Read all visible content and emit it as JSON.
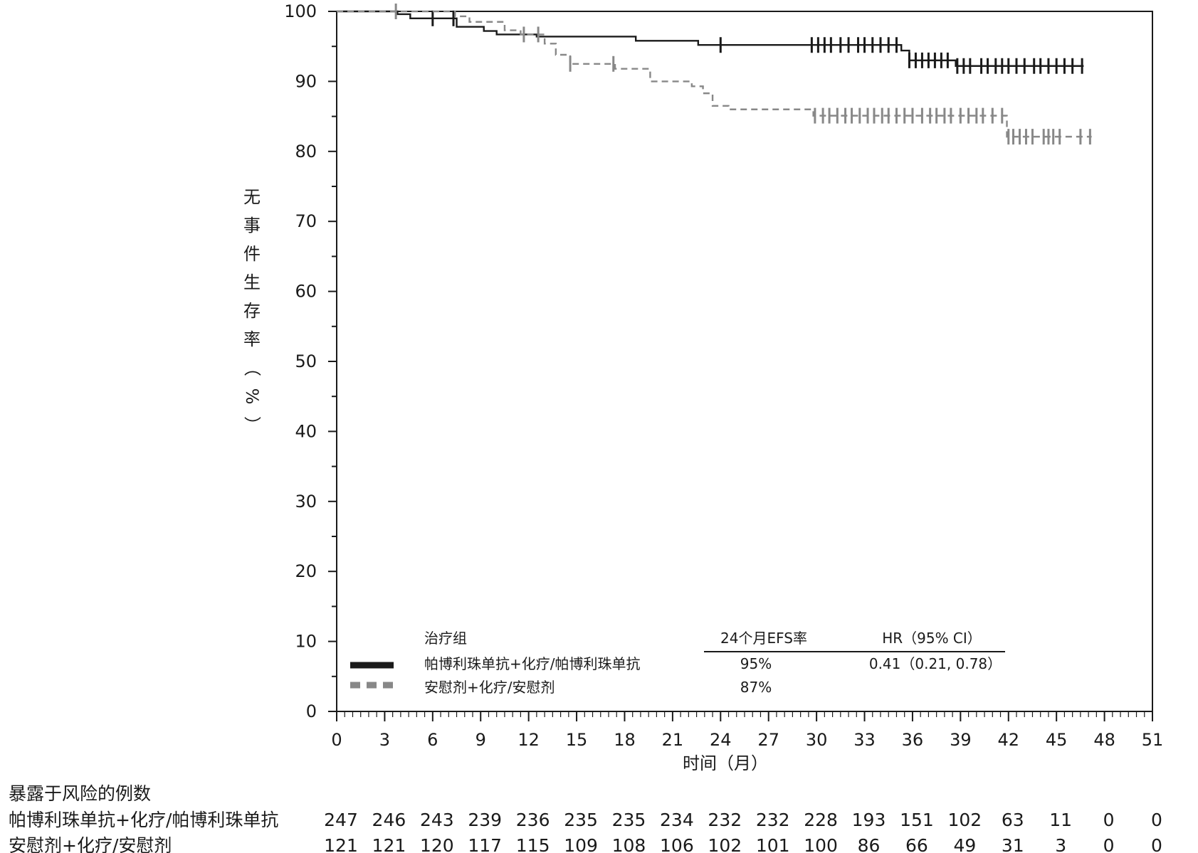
{
  "chart_data": {
    "type": "line",
    "subtype": "kaplan-meier",
    "title": "",
    "xlabel": "时间（月）",
    "ylabel": "无事件生存率（%）",
    "xlim": [
      0,
      51
    ],
    "ylim": [
      0,
      100
    ],
    "x_ticks": [
      0,
      3,
      6,
      9,
      12,
      15,
      18,
      21,
      24,
      27,
      30,
      33,
      36,
      39,
      42,
      45,
      48,
      51
    ],
    "y_ticks": [
      0,
      10,
      20,
      30,
      40,
      50,
      60,
      70,
      80,
      90,
      100
    ],
    "grid": false,
    "series": [
      {
        "name": "帕博利珠单抗+化疗/帕博利珠单抗",
        "color": "#1a1a1a",
        "style": "solid",
        "steps": [
          [
            0,
            100
          ],
          [
            3.8,
            99.6
          ],
          [
            4.6,
            99.0
          ],
          [
            7.5,
            97.8
          ],
          [
            9.2,
            97.2
          ],
          [
            10.0,
            96.7
          ],
          [
            12.5,
            96.4
          ],
          [
            18.7,
            95.8
          ],
          [
            22.6,
            95.2
          ],
          [
            35.3,
            94.4
          ],
          [
            35.8,
            93.0
          ],
          [
            38.7,
            92.2
          ],
          [
            46.7,
            92.2
          ]
        ],
        "censored": [
          6.0,
          7.3,
          24.0,
          29.7,
          30.1,
          30.5,
          30.9,
          31.5,
          32.0,
          32.6,
          33.0,
          33.5,
          34.0,
          34.5,
          35.0,
          35.8,
          36.2,
          36.6,
          37.0,
          37.4,
          37.8,
          38.2,
          38.8,
          39.2,
          39.6,
          40.3,
          40.7,
          41.2,
          41.6,
          42.0,
          42.5,
          43.0,
          43.6,
          44.0,
          44.5,
          45.0,
          45.5,
          46.0,
          46.6
        ]
      },
      {
        "name": "安慰剂+化疗/安慰剂",
        "color": "#888888",
        "style": "dashed",
        "steps": [
          [
            0,
            100
          ],
          [
            7.4,
            99.3
          ],
          [
            8.3,
            98.5
          ],
          [
            10.5,
            97.3
          ],
          [
            11.5,
            96.7
          ],
          [
            13.0,
            95.4
          ],
          [
            13.7,
            93.8
          ],
          [
            14.6,
            92.5
          ],
          [
            17.4,
            91.8
          ],
          [
            19.6,
            90.0
          ],
          [
            22.2,
            89.3
          ],
          [
            22.9,
            88.3
          ],
          [
            23.5,
            86.5
          ],
          [
            24.5,
            86.0
          ],
          [
            29.8,
            85.1
          ],
          [
            41.9,
            82.1
          ],
          [
            47.2,
            82.1
          ]
        ],
        "censored": [
          3.7,
          11.7,
          12.6,
          14.6,
          17.3,
          29.9,
          30.4,
          30.8,
          31.3,
          31.8,
          32.2,
          32.7,
          33.2,
          33.6,
          34.1,
          34.5,
          35.0,
          35.5,
          36.0,
          36.6,
          37.1,
          37.5,
          38.0,
          38.4,
          39.0,
          39.5,
          40.0,
          40.4,
          41.0,
          41.6,
          42.0,
          42.3,
          42.7,
          43.1,
          43.5,
          44.2,
          44.5,
          44.8,
          45.2,
          46.5,
          47.1
        ]
      }
    ],
    "legend": {
      "placement": "bottom-left",
      "header_group": "治疗组",
      "header_rate": "24个月EFS率",
      "header_hr": "HR（95% CI）",
      "rows": [
        {
          "label": "帕博利珠单抗+化疗/帕博利珠单抗",
          "rate": "95%",
          "hr": "0.41（0.21, 0.78）"
        },
        {
          "label": "安慰剂+化疗/安慰剂",
          "rate": "87%",
          "hr": ""
        }
      ]
    },
    "risk_table": {
      "title": "暴露于风险的例数",
      "rows": [
        {
          "label": "帕博利珠单抗+化疗/帕博利珠单抗",
          "values": [
            247,
            246,
            243,
            239,
            236,
            235,
            235,
            234,
            232,
            232,
            228,
            193,
            151,
            102,
            63,
            11,
            0,
            0
          ]
        },
        {
          "label": "安慰剂+化疗/安慰剂",
          "values": [
            121,
            121,
            120,
            117,
            115,
            109,
            108,
            106,
            102,
            101,
            100,
            86,
            66,
            49,
            31,
            3,
            0,
            0
          ]
        }
      ]
    }
  }
}
